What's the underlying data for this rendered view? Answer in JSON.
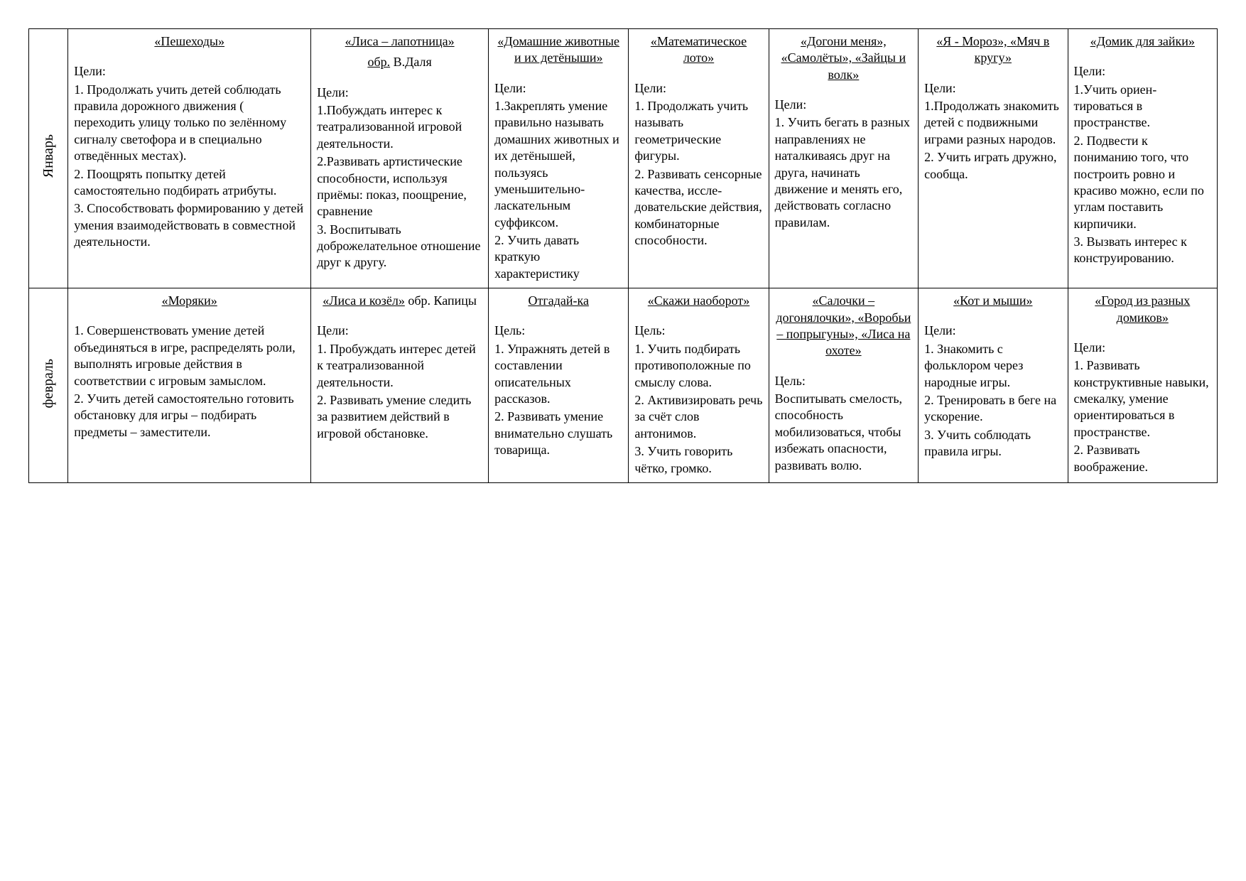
{
  "rows": [
    {
      "month": "Январь",
      "cells": [
        {
          "title": "«Пешеходы»",
          "goals_label": "Цели:",
          "lines": [
            "1. Продолжать учить детей соблюдать правила дорожного движения ( переходить улицу только по зелённому сигналу светофора и в специально отведённых местах).",
            "2. Поощрять попытку детей самостоятельно подбирать атрибуты.",
            "3. Способствовать формиро­ванию у детей умения взаимодействовать в совместной деятельности."
          ]
        },
        {
          "title": "«Лиса – лапотница»",
          "subtitle": "обр. В.Даля",
          "title_inline": true,
          "goals_label": "Цели:",
          "lines": [
            "1.Побуждать инте­рес к театрализо­ванной игровой деятельности.",
            "2.Развивать артис­тические способ­ности, используя приёмы: показ, поощрение, сравнение",
            "3. Воспитывать доброжелательное отношение друг к другу."
          ]
        },
        {
          "title": "«Домашние животные и их детёныши»",
          "goals_label": "Цели:",
          "lines": [
            "1.Закреплять умение пра­вильно назы­вать домашних животных и их детёнышей, пользуясь уменьшительно-ласкательным суффиксом.",
            "2. Учить давать краткую характеристику"
          ]
        },
        {
          "title": "«Математи­ческое лото»",
          "goals_label": "Цели:",
          "lines": [
            "1. Продолжать учить называть геометрические фигуры.",
            "2. Развивать сенсорные качества, иссле­довательские действия, комбинаторные способности."
          ]
        },
        {
          "title": "«Догони меня», «Самолёты», «Зайцы и волк»",
          "goals_label": "Цели:",
          "lines": [
            "1. Учить бегать в разных направлениях не наталкиваясь друг на друга, начинать движение и менять его, действовать согласно правилам."
          ]
        },
        {
          "title": "«Я - Мороз», «Мяч в кругу»",
          "goals_label": "Цели:",
          "lines": [
            "1.Продолжать знакомить детей с подвижными играми разных народов.",
            "2. Учить играть дружно, сообща."
          ]
        },
        {
          "title": "«Домик для зайки»",
          "goals_label": "Цели:",
          "lines": [
            "1.Учить ориен­тироваться в пространстве.",
            "2. Подвести к пониманию то­го, что пост­роить ровно и красиво можно, если по углам поставить кирпичики.",
            "3. Вызвать интерес к конструирова­нию."
          ]
        }
      ]
    },
    {
      "month": "февраль",
      "cells": [
        {
          "title": "«Моряки»",
          "goals_label": "",
          "lines": [
            "1. Совершенствовать умение детей объединяться в игре, распределять роли, выполнять игровые действия в соответствии с игровым замыслом.",
            "2. Учить детей самостоятельно готовить обстановку для игры – подбирать предметы – заместители."
          ]
        },
        {
          "title": "«Лиса и козёл» обр. Капицы",
          "title_split": {
            "u": "«Лиса и козёл»",
            "rest": " обр. Капицы"
          },
          "goals_label": "Цели:",
          "lines": [
            "1. Пробуждать интерес детей к театрализованной деятельности.",
            "2. Развивать умение следить за развитием действий в игровой обстановке."
          ]
        },
        {
          "title": "Отгадай-ка",
          "goals_label": "Цель:",
          "lines": [
            "1.  Упражнять детей в составлении описательных рассказов.",
            "2.  Развивать умение внимательно слушать товарища."
          ]
        },
        {
          "title": "«Скажи наоборот»",
          "goals_label": "Цель:",
          "lines": [
            "1. Учить подбирать про­тивоположные по смыслу слова.",
            "2. Активизиро­вать речь за счёт слов антонимов.",
            "3. Учить говорить чётко, громко."
          ]
        },
        {
          "title": "«Салочки – догонялочки», «Воробьи – попрыгуны», «Лиса на охоте»",
          "goals_label": "Цель:",
          "lines": [
            "Воспитывать смелость, способность мобилизоваться, чтобы избежать опасности, развивать волю."
          ]
        },
        {
          "title": "«Кот и мыши»",
          "goals_label": "Цели:",
          "lines": [
            "1. Знакомить с фольклором через народные игры.",
            "2. Тренировать в беге на ускорение.",
            "3. Учить соблюдать правила игры."
          ]
        },
        {
          "title": "«Город из разных домиков»",
          "goals_label": "Цели:",
          "lines": [
            "1. Развивать конструктивные навыки, смекалку, умение ориентироваться в пространстве.",
            "2. Развивать воображение."
          ]
        }
      ]
    }
  ],
  "col_classes": [
    "col-wide",
    "col-mid",
    "col-nar",
    "col-nar",
    "col-std",
    "col-std",
    "col-std"
  ]
}
